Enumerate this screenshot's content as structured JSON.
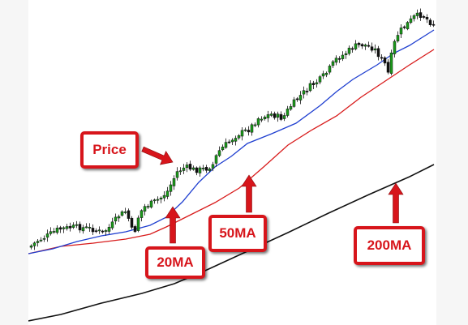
{
  "chart_data": {
    "type": "candlestick",
    "title": "",
    "xlabel": "",
    "ylabel": "",
    "grid": false,
    "legend": "none",
    "series": [
      {
        "name": "Price",
        "role": "price",
        "color": "#1a9c1a"
      },
      {
        "name": "20MA",
        "role": "ma",
        "color": "#1f3fd0"
      },
      {
        "name": "50MA",
        "role": "ma",
        "color": "#d81b1b"
      },
      {
        "name": "200MA",
        "role": "ma",
        "color": "#111111"
      }
    ],
    "annotations": [
      {
        "label": "Price",
        "target": "Price"
      },
      {
        "label": "20MA",
        "target": "20MA"
      },
      {
        "label": "50MA",
        "target": "50MA"
      },
      {
        "label": "200MA",
        "target": "200MA"
      }
    ]
  },
  "colors": {
    "candle_up": "#1a9c1a",
    "candle_down": "#111111",
    "callout": "#d7151b"
  }
}
